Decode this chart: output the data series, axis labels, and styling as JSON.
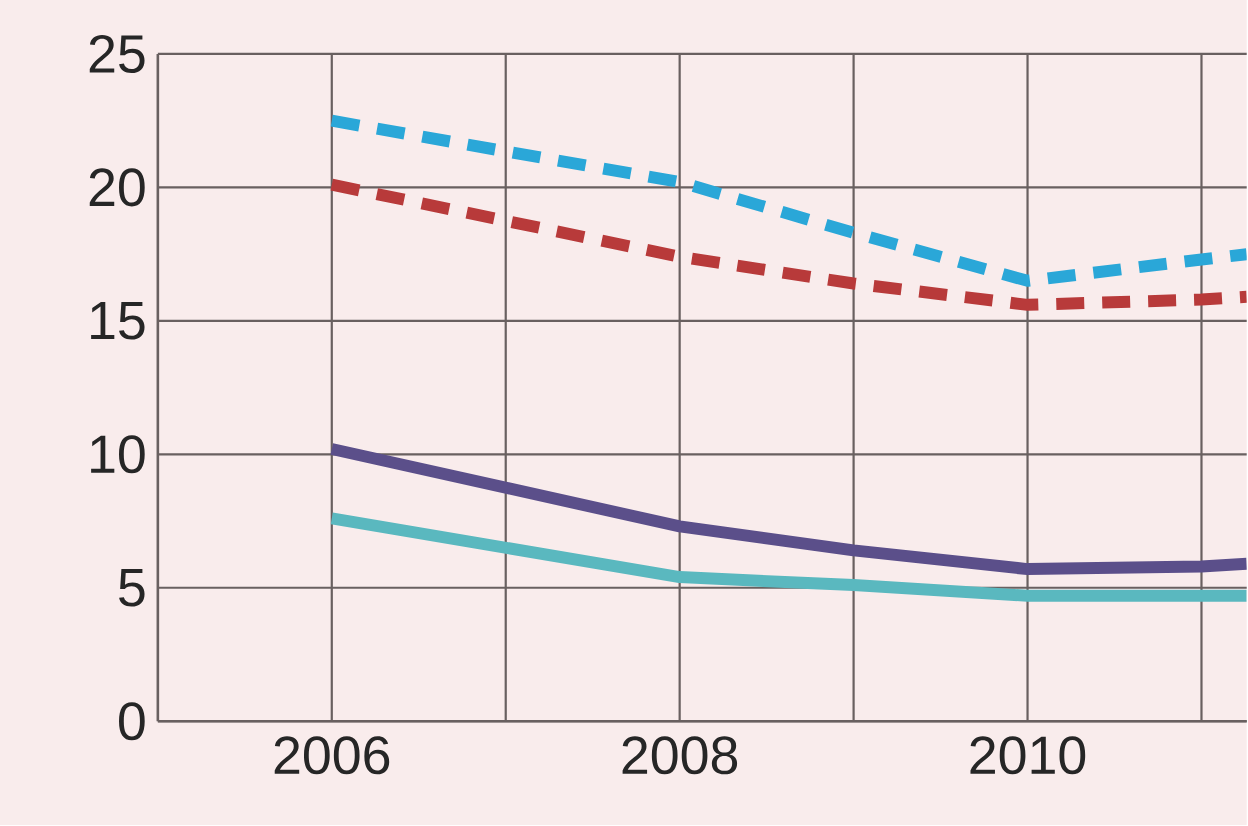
{
  "chart_data": {
    "type": "line",
    "line_style": "solid",
    "marker": "none",
    "grid": true,
    "xlim": [
      2005,
      2011.26
    ],
    "ylim": [
      0,
      25
    ],
    "xticks": [
      {
        "value": 2006,
        "label": "2006"
      },
      {
        "value": 2007,
        "label": null
      },
      {
        "value": 2008,
        "label": "2008"
      },
      {
        "value": 2009,
        "label": null
      },
      {
        "value": 2010,
        "label": "2010"
      },
      {
        "value": 2011,
        "label": null
      }
    ],
    "yticks": [
      0,
      5,
      10,
      15,
      20,
      25
    ],
    "series": [
      {
        "color": "#2aa7d8",
        "line_style": "dashed",
        "x": [
          2006,
          2008,
          2009,
          2010,
          2011,
          2011.26
        ],
        "values": [
          22.5,
          20.2,
          18.3,
          16.5,
          17.3,
          17.5
        ]
      },
      {
        "color": "#b83a3a",
        "line_style": "dashed",
        "x": [
          2006,
          2008,
          2009,
          2010,
          2011,
          2011.26
        ],
        "values": [
          20.1,
          17.4,
          16.4,
          15.6,
          15.8,
          15.9
        ]
      },
      {
        "color": "#5b4f8a",
        "x": [
          2006,
          2008,
          2009,
          2010,
          2011,
          2011.26
        ],
        "values": [
          10.2,
          7.3,
          6.4,
          5.7,
          5.8,
          5.9
        ]
      },
      {
        "color": "#5ab8bf",
        "x": [
          2006,
          2008,
          2009,
          2010,
          2011,
          2011.26
        ],
        "values": [
          7.6,
          5.4,
          5.1,
          4.7,
          4.7,
          4.7
        ]
      }
    ]
  }
}
